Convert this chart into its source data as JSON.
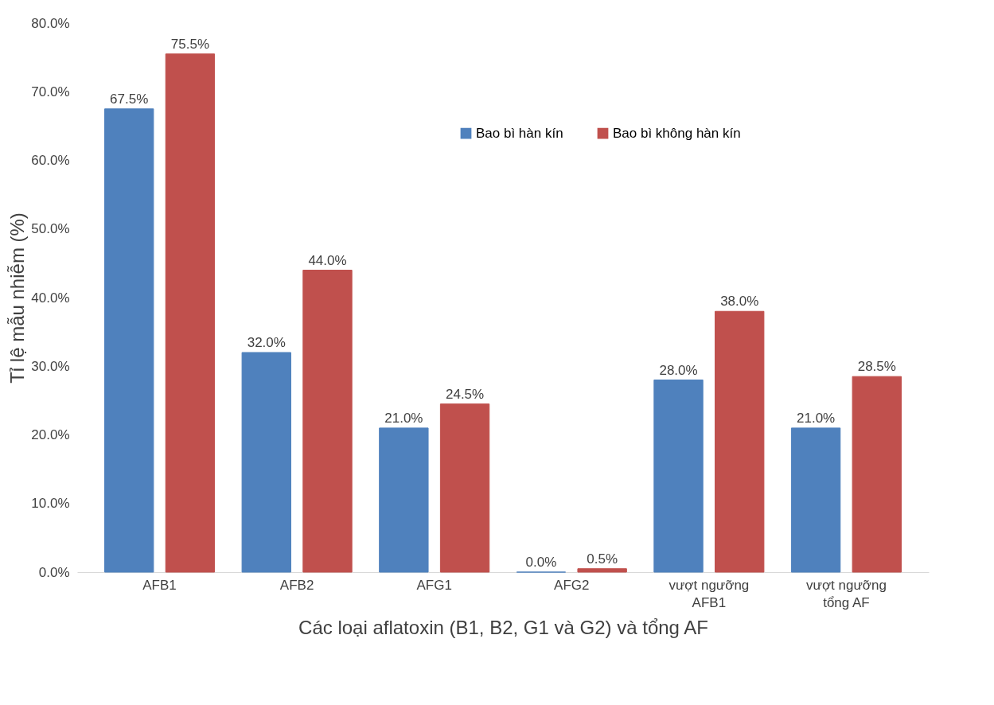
{
  "chart_data": {
    "type": "bar",
    "xlabel": "Các loại aflatoxin (B1, B2, G1 và G2) và tổng AF",
    "ylabel": "Tỉ lệ mẫu nhiễm (%)",
    "categories": [
      "AFB1",
      "AFB2",
      "AFG1",
      "AFG2",
      "vượt ngưỡng\nAFB1",
      "vượt ngưỡng\ntổng AF"
    ],
    "series": [
      {
        "name": "Bao bì hàn kín",
        "color": "#4f81bd",
        "values": [
          67.5,
          32.0,
          21.0,
          0.0,
          28.0,
          21.0
        ],
        "value_labels": [
          "67.5%",
          "32.0%",
          "21.0%",
          "0.0%",
          "28.0%",
          "21.0%"
        ]
      },
      {
        "name": "Bao bì không hàn kín",
        "color": "#c0504d",
        "values": [
          75.5,
          44.0,
          24.5,
          0.5,
          38.0,
          28.5
        ],
        "value_labels": [
          "75.5%",
          "44.0%",
          "24.5%",
          "0.5%",
          "38.0%",
          "28.5%"
        ]
      }
    ],
    "ylim": [
      0,
      80
    ],
    "yticks": [
      {
        "value": 0,
        "label": "0.0%"
      },
      {
        "value": 10,
        "label": "10.0%"
      },
      {
        "value": 20,
        "label": "20.0%"
      },
      {
        "value": 30,
        "label": "30.0%"
      },
      {
        "value": 40,
        "label": "40.0%"
      },
      {
        "value": 50,
        "label": "50.0%"
      },
      {
        "value": 60,
        "label": "60.0%"
      },
      {
        "value": 70,
        "label": "70.0%"
      },
      {
        "value": 80,
        "label": "80.0%"
      }
    ],
    "legend": "top",
    "grid": false
  }
}
